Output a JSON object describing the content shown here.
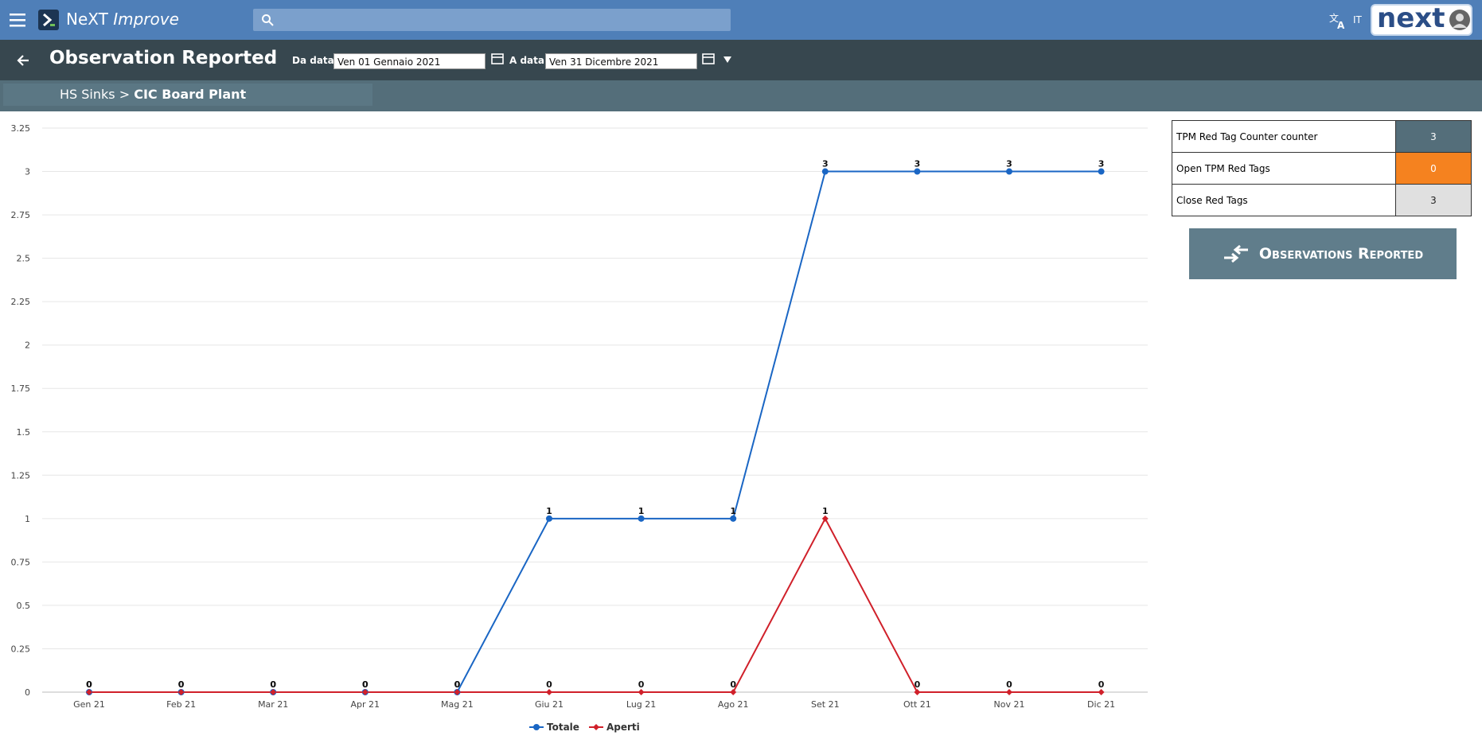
{
  "header": {
    "brand": "NeXT",
    "brand_sub": "Improve",
    "language": "IT",
    "logo": "next"
  },
  "toolbar": {
    "title": "Observation Reported",
    "from_label": "Da data:",
    "from_value": "Ven 01 Gennaio 2021",
    "to_label": "A data:",
    "to_value": "Ven 31 Dicembre 2021"
  },
  "breadcrumb": {
    "parent": "HS Sinks",
    "separator": ">",
    "current": "CIC Board Plant"
  },
  "chart_data": {
    "type": "line",
    "categories": [
      "Gen 21",
      "Feb 21",
      "Mar 21",
      "Apr 21",
      "Mag 21",
      "Giu 21",
      "Lug 21",
      "Ago 21",
      "Set 21",
      "Ott 21",
      "Nov 21",
      "Dic 21"
    ],
    "series": [
      {
        "name": "Totale",
        "color": "#1a66c4",
        "marker": "circle",
        "values": [
          0,
          0,
          0,
          0,
          0,
          1,
          1,
          1,
          3,
          3,
          3,
          3
        ]
      },
      {
        "name": "Aperti",
        "color": "#d0202a",
        "marker": "diamond",
        "values": [
          0,
          0,
          0,
          0,
          0,
          0,
          0,
          0,
          1,
          0,
          0,
          0
        ]
      }
    ],
    "ylim": [
      0,
      3.25
    ],
    "yticks": [
      0,
      0.25,
      0.5,
      0.75,
      1,
      1.25,
      1.5,
      1.75,
      2,
      2.25,
      2.5,
      2.75,
      3,
      3.25
    ],
    "grid": true,
    "legend": "bottom",
    "data_labels": true
  },
  "summary": {
    "rows": [
      {
        "label": "TPM Red Tag Counter counter",
        "value": 3,
        "color": "#546e7a",
        "text_color": "#ffffff"
      },
      {
        "label": "Open TPM Red Tags",
        "value": 0,
        "color": "#f5821f",
        "text_color": "#ffffff"
      },
      {
        "label": "Close Red Tags",
        "value": 3,
        "color": "#e0e0e0",
        "text_color": "#222222"
      }
    ]
  },
  "button": {
    "label": "Observations Reported"
  }
}
